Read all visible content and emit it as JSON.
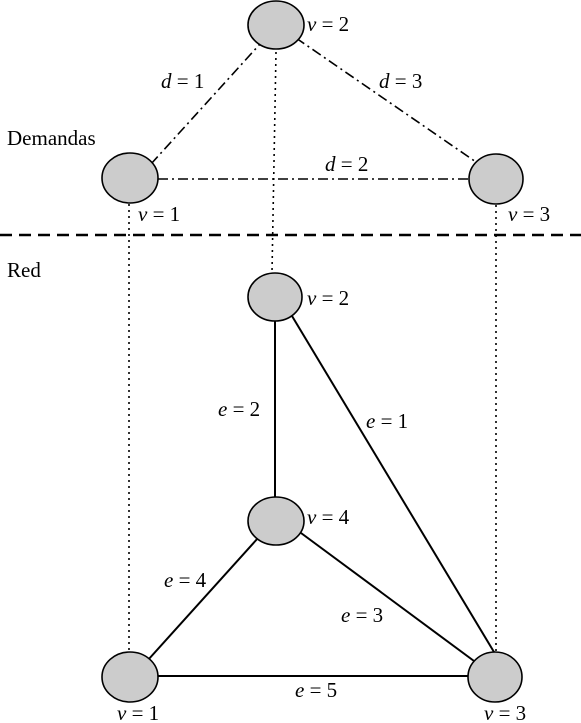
{
  "sections": {
    "demands": "Demandas",
    "network": "Red"
  },
  "demand_graph": {
    "nodes": [
      {
        "var": "v",
        "eq": " = 2"
      },
      {
        "var": "v",
        "eq": " = 1"
      },
      {
        "var": "v",
        "eq": " = 3"
      }
    ],
    "edges": [
      {
        "var": "d",
        "eq": " = 1"
      },
      {
        "var": "d",
        "eq": " = 3"
      },
      {
        "var": "d",
        "eq": " = 2"
      }
    ]
  },
  "network_graph": {
    "nodes": [
      {
        "var": "v",
        "eq": " = 2"
      },
      {
        "var": "v",
        "eq": " = 4"
      },
      {
        "var": "v",
        "eq": " = 1"
      },
      {
        "var": "v",
        "eq": " = 3"
      }
    ],
    "edges": [
      {
        "var": "e",
        "eq": " = 2"
      },
      {
        "var": "e",
        "eq": " = 1"
      },
      {
        "var": "e",
        "eq": " = 4"
      },
      {
        "var": "e",
        "eq": " = 3"
      },
      {
        "var": "e",
        "eq": " = 5"
      }
    ]
  },
  "colors": {
    "node_fill": "#cccccc",
    "stroke": "#000000"
  }
}
